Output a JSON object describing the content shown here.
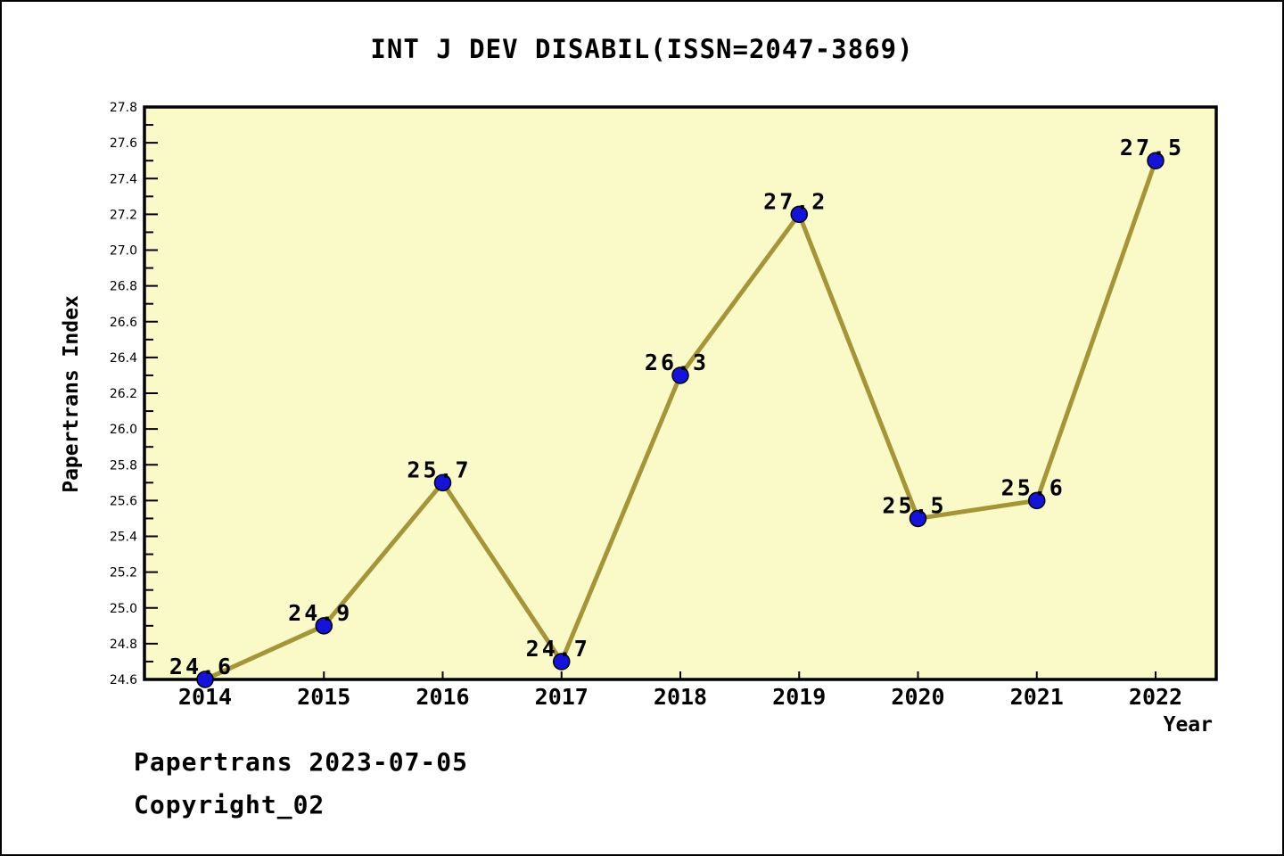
{
  "chart_data": {
    "type": "line",
    "title": "INT J DEV DISABIL(ISSN=2047-3869)",
    "xlabel": "Year",
    "ylabel": "Papertrans Index",
    "x": [
      2014,
      2015,
      2016,
      2017,
      2018,
      2019,
      2020,
      2021,
      2022
    ],
    "series": [
      {
        "name": "Papertrans Index",
        "values": [
          24.6,
          24.9,
          25.7,
          24.7,
          26.3,
          27.2,
          25.5,
          25.6,
          27.5
        ],
        "point_labels": [
          "24.6",
          "24.9",
          "25.7",
          "24.7",
          "26.3",
          "27.2",
          "25.5",
          "25.6",
          "27.5"
        ]
      }
    ],
    "ylim": [
      24.6,
      27.8
    ],
    "y_major_step": 0.2,
    "y_minor_step": 0.1,
    "grid": false,
    "legend": "none",
    "colors": {
      "plot_bg": "#FAFAC8",
      "page_bg": "#FFFFFF",
      "line": "#A69536",
      "marker": "#1313DB",
      "marker_edge": "#000000",
      "axis": "#000000",
      "text": "#000000"
    }
  },
  "footer": {
    "line1": "Papertrans 2023-07-05",
    "line2": "Copyright_02"
  }
}
